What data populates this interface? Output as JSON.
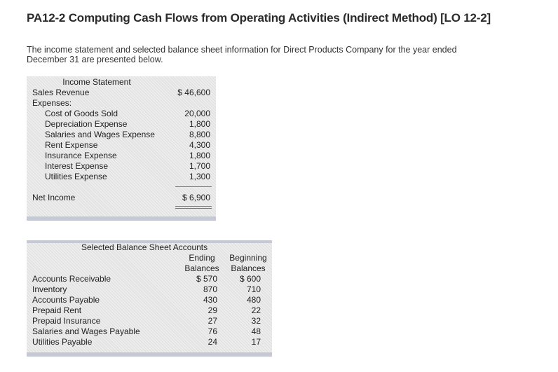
{
  "header": {
    "title": "PA12-2 Computing Cash Flows from Operating Activities (Indirect Method) [LO 12-2]",
    "intro": "The income statement and selected balance sheet information for Direct Products Company for the year ended December 31 are presented below."
  },
  "income_statement": {
    "title": "Income Statement",
    "sales_label": "Sales Revenue",
    "sales_value": "$ 46,600",
    "expenses_label": "Expenses:",
    "expenses": [
      {
        "label": "Cost of Goods Sold",
        "value": "20,000"
      },
      {
        "label": "Depreciation Expense",
        "value": "1,800"
      },
      {
        "label": "Salaries and Wages Expense",
        "value": "8,800"
      },
      {
        "label": "Rent Expense",
        "value": "4,300"
      },
      {
        "label": "Insurance Expense",
        "value": "1,800"
      },
      {
        "label": "Interest Expense",
        "value": "1,700"
      },
      {
        "label": "Utilities Expense",
        "value": "1,300"
      }
    ],
    "net_income_label": "Net Income",
    "net_income_value": "$ 6,900"
  },
  "balance_sheet": {
    "title": "Selected Balance Sheet Accounts",
    "col_ending_1": "Ending",
    "col_ending_2": "Balances",
    "col_beginning_1": "Beginning",
    "col_beginning_2": "Balances",
    "rows": [
      {
        "label": "Accounts Receivable",
        "ending": "$ 570",
        "beginning": "$ 600"
      },
      {
        "label": "Inventory",
        "ending": "870",
        "beginning": "710"
      },
      {
        "label": "Accounts Payable",
        "ending": "430",
        "beginning": "480"
      },
      {
        "label": "Prepaid Rent",
        "ending": "29",
        "beginning": "22"
      },
      {
        "label": "Prepaid Insurance",
        "ending": "27",
        "beginning": "32"
      },
      {
        "label": "Salaries and Wages Payable",
        "ending": "76",
        "beginning": "48"
      },
      {
        "label": "Utilities Payable",
        "ending": "24",
        "beginning": "17"
      }
    ]
  }
}
